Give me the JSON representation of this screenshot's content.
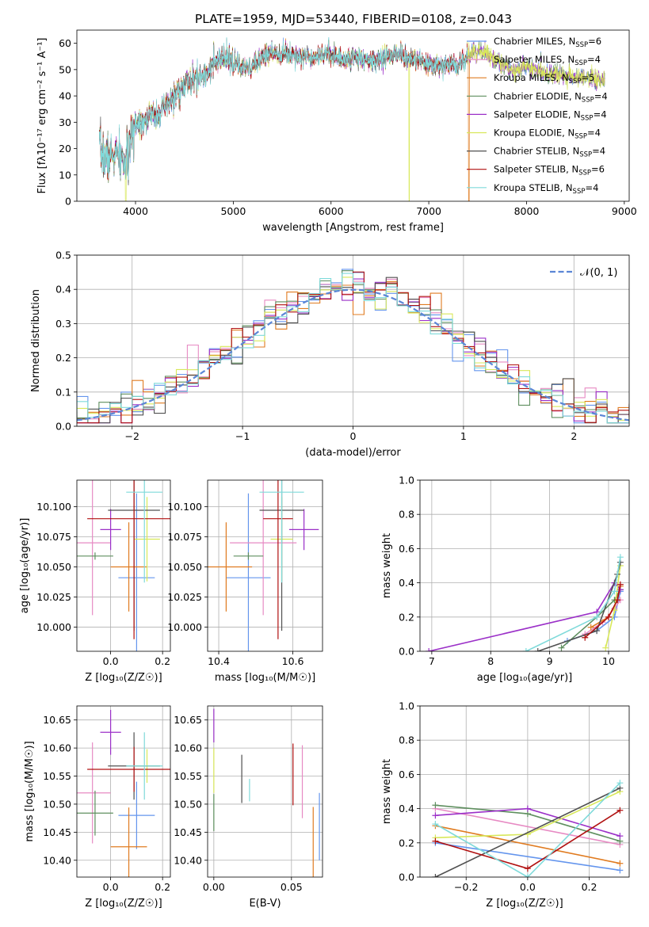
{
  "figure_title": "PLATE=1959, MJD=53440, FIBERID=0108, z=0.043",
  "colors": {
    "Chabrier MILES": "#6495ed",
    "Salpeter MILES": "#e78ac3",
    "Kroupa MILES": "#e07b20",
    "Chabrier ELODIE": "#5f8f5f",
    "Salpeter ELODIE": "#9b30c8",
    "Kroupa ELODIE": "#d8e85a",
    "Chabrier STELIB": "#505050",
    "Salpeter STELIB": "#b01010",
    "Kroupa STELIB": "#7fdada"
  },
  "chart_data": [
    {
      "id": "spectrum",
      "type": "line",
      "xlabel": "wavelength [Angstrom, rest frame]",
      "ylabel": "Flux [fλ10⁻¹⁷ erg cm⁻² s⁻¹ A⁻¹]",
      "xlim": [
        3400,
        9050
      ],
      "ylim": [
        0,
        65
      ],
      "xticks": [
        4000,
        5000,
        6000,
        7000,
        8000,
        9000
      ],
      "yticks": [
        0,
        10,
        20,
        30,
        40,
        50,
        60
      ],
      "grid": false,
      "legend_position": "upper-right",
      "legend": [
        {
          "label": "Chabrier MILES, N",
          "sub": "SSP",
          "suffix": "=6",
          "model": "Chabrier MILES"
        },
        {
          "label": "Salpeter MILES, N",
          "sub": "SSP",
          "suffix": "=4",
          "model": "Salpeter MILES"
        },
        {
          "label": "Kroupa MILES, N",
          "sub": "SSP",
          "suffix": "=5",
          "model": "Kroupa MILES"
        },
        {
          "label": "Chabrier ELODIE, N",
          "sub": "SSP",
          "suffix": "=4",
          "model": "Chabrier ELODIE"
        },
        {
          "label": "Salpeter ELODIE, N",
          "sub": "SSP",
          "suffix": "=4",
          "model": "Salpeter ELODIE"
        },
        {
          "label": "Kroupa ELODIE, N",
          "sub": "SSP",
          "suffix": "=4",
          "model": "Kroupa ELODIE"
        },
        {
          "label": "Chabrier STELIB, N",
          "sub": "SSP",
          "suffix": "=4",
          "model": "Chabrier STELIB"
        },
        {
          "label": "Salpeter STELIB, N",
          "sub": "SSP",
          "suffix": "=6",
          "model": "Salpeter STELIB"
        },
        {
          "label": "Kroupa STELIB, N",
          "sub": "SSP",
          "suffix": "=4",
          "model": "Kroupa STELIB"
        }
      ],
      "continuum": {
        "x": [
          3630,
          3700,
          3800,
          3900,
          3950,
          4000,
          4100,
          4200,
          4300,
          4400,
          4500,
          4600,
          4700,
          4800,
          4900,
          5000,
          5100,
          5200,
          5300,
          5400,
          5500,
          5600,
          5700,
          5800,
          5900,
          6000,
          6100,
          6200,
          6300,
          6400,
          6500,
          6600,
          6700,
          6800,
          6900,
          7000,
          7100,
          7200,
          7300,
          7400,
          7500,
          7600,
          7700,
          7800,
          7900,
          8000,
          8100,
          8200,
          8300,
          8400,
          8500,
          8600,
          8700,
          8800
        ],
        "y": [
          20,
          16,
          18,
          14,
          22,
          30,
          31,
          33,
          35,
          40,
          44,
          46,
          48,
          52,
          54,
          53,
          50,
          51,
          55,
          57,
          56,
          56,
          55,
          55,
          56,
          56,
          54,
          54,
          55,
          53,
          54,
          55,
          56,
          54,
          53,
          52,
          51,
          52,
          52,
          55,
          57,
          56,
          53,
          51,
          50,
          51,
          50,
          49,
          48,
          48,
          47,
          47,
          46,
          46
        ]
      },
      "sharp_dips": [
        {
          "x": 3900,
          "model": "Kroupa ELODIE"
        },
        {
          "x": 6800,
          "model": "Kroupa ELODIE"
        },
        {
          "x": 7410,
          "model": "Kroupa MILES"
        }
      ]
    },
    {
      "id": "residuals",
      "type": "histogram",
      "xlabel": "(data-model)/error",
      "ylabel": "Normed distribution",
      "xlim": [
        -2.5,
        2.5
      ],
      "ylim": [
        0,
        0.5
      ],
      "xticks": [
        -2,
        -1,
        0,
        1,
        2
      ],
      "yticks": [
        0.0,
        0.1,
        0.2,
        0.3,
        0.4,
        0.5
      ],
      "grid": true,
      "legend_position": "upper-right",
      "reference_curve": {
        "label": "𝒩(0, 1)",
        "mean": 0,
        "sigma": 1,
        "color": "#5b86d6",
        "style": "dashed"
      },
      "bin_width": 0.1
    },
    {
      "id": "age_vs_Z",
      "type": "errorbar",
      "xlabel": "Z [log₁₀(Z/Z☉)]",
      "ylabel": "age  [log₁₀(age/yr)]",
      "xlim": [
        -0.13,
        0.23
      ],
      "ylim": [
        9.98,
        10.122
      ],
      "xticks": [
        0.0,
        0.2
      ],
      "yticks": [
        10.0,
        10.025,
        10.05,
        10.075,
        10.1
      ],
      "grid": true,
      "points": [
        {
          "model": "Chabrier MILES",
          "x": 0.1,
          "xerr": 0.07,
          "y": 10.041,
          "yerr": 0.07
        },
        {
          "model": "Salpeter MILES",
          "x": -0.07,
          "xerr": 0.07,
          "y": 10.07,
          "yerr": 0.06
        },
        {
          "model": "Kroupa MILES",
          "x": 0.07,
          "xerr": 0.07,
          "y": 10.05,
          "yerr": 0.037
        },
        {
          "model": "Chabrier ELODIE",
          "x": -0.06,
          "xerr": 0.07,
          "y": 10.059,
          "yerr": 0.003
        },
        {
          "model": "Salpeter ELODIE",
          "x": 0.0,
          "xerr": 0.04,
          "y": 10.081,
          "yerr": 0.017
        },
        {
          "model": "Kroupa ELODIE",
          "x": 0.14,
          "xerr": 0.05,
          "y": 10.073,
          "yerr": 0.035
        },
        {
          "model": "Chabrier STELIB",
          "x": 0.09,
          "xerr": 0.1,
          "y": 10.097,
          "yerr": 0.1
        },
        {
          "model": "Salpeter STELIB",
          "x": 0.09,
          "xerr": 0.18,
          "y": 10.09,
          "yerr": 0.1
        },
        {
          "model": "Kroupa STELIB",
          "x": 0.13,
          "xerr": 0.07,
          "y": 10.112,
          "yerr": 0.075
        }
      ]
    },
    {
      "id": "age_vs_mass",
      "type": "errorbar",
      "xlabel": "mass [log₁₀(M/M☉)]",
      "ylabel": "",
      "xlim": [
        10.37,
        10.68
      ],
      "ylim": [
        9.98,
        10.122
      ],
      "xticks": [
        10.4,
        10.6
      ],
      "yticks": [
        10.0,
        10.025,
        10.05,
        10.075,
        10.1
      ],
      "grid": true,
      "points": [
        {
          "model": "Chabrier MILES",
          "x": 10.48,
          "xerr": 0.06,
          "y": 10.041,
          "yerr": 0.07
        },
        {
          "model": "Salpeter MILES",
          "x": 10.52,
          "xerr": 0.09,
          "y": 10.07,
          "yerr": 0.06
        },
        {
          "model": "Kroupa MILES",
          "x": 10.42,
          "xerr": 0.07,
          "y": 10.05,
          "yerr": 0.037
        },
        {
          "model": "Chabrier ELODIE",
          "x": 10.48,
          "xerr": 0.04,
          "y": 10.059,
          "yerr": 0.003
        },
        {
          "model": "Salpeter ELODIE",
          "x": 10.63,
          "xerr": 0.04,
          "y": 10.081,
          "yerr": 0.017
        },
        {
          "model": "Kroupa ELODIE",
          "x": 10.57,
          "xerr": 0.03,
          "y": 10.073,
          "yerr": 0.035
        },
        {
          "model": "Chabrier STELIB",
          "x": 10.57,
          "xerr": 0.06,
          "y": 10.097,
          "yerr": 0.1
        },
        {
          "model": "Salpeter STELIB",
          "x": 10.56,
          "xerr": 0.04,
          "y": 10.09,
          "yerr": 0.1
        },
        {
          "model": "Kroupa STELIB",
          "x": 10.57,
          "xerr": 0.06,
          "y": 10.112,
          "yerr": 0.075
        }
      ]
    },
    {
      "id": "weight_vs_age",
      "type": "line",
      "xlabel": "age  [log₁₀(age/yr)]",
      "ylabel": "mass weight",
      "xlim": [
        6.8,
        10.35
      ],
      "ylim": [
        0,
        1
      ],
      "xticks": [
        7,
        8,
        9,
        10
      ],
      "yticks": [
        0.0,
        0.2,
        0.4,
        0.6,
        0.8,
        1.0
      ],
      "grid": true,
      "series": [
        {
          "model": "Chabrier MILES",
          "x": [
            9.3,
            9.8,
            10.1,
            10.2
          ],
          "y": [
            0.06,
            0.12,
            0.2,
            0.35
          ]
        },
        {
          "model": "Salpeter MILES",
          "x": [
            9.6,
            9.9,
            10.1,
            10.2
          ],
          "y": [
            0.1,
            0.17,
            0.25,
            0.3
          ]
        },
        {
          "model": "Kroupa MILES",
          "x": [
            9.7,
            10.0,
            10.15,
            10.2
          ],
          "y": [
            0.14,
            0.2,
            0.3,
            0.38
          ]
        },
        {
          "model": "Chabrier ELODIE",
          "x": [
            9.2,
            9.8,
            10.1,
            10.2
          ],
          "y": [
            0.02,
            0.2,
            0.3,
            0.36
          ]
        },
        {
          "model": "Salpeter ELODIE",
          "x": [
            6.95,
            9.8,
            10.1,
            10.2
          ],
          "y": [
            0.0,
            0.23,
            0.4,
            0.36
          ]
        },
        {
          "model": "Kroupa ELODIE",
          "x": [
            9.95,
            10.1,
            10.2
          ],
          "y": [
            0.02,
            0.24,
            0.5
          ]
        },
        {
          "model": "Chabrier STELIB",
          "x": [
            8.8,
            9.8,
            10.15,
            10.2
          ],
          "y": [
            0.0,
            0.12,
            0.45,
            0.52
          ]
        },
        {
          "model": "Salpeter STELIB",
          "x": [
            9.6,
            10.0,
            10.15,
            10.2
          ],
          "y": [
            0.08,
            0.2,
            0.3,
            0.39
          ]
        },
        {
          "model": "Kroupa STELIB",
          "x": [
            8.6,
            9.8,
            10.1,
            10.2
          ],
          "y": [
            0.0,
            0.2,
            0.35,
            0.55
          ]
        }
      ]
    },
    {
      "id": "mass_vs_Z",
      "type": "errorbar",
      "xlabel": "Z [log₁₀(Z/Z☉)]",
      "ylabel": "mass [log₁₀(M/M☉)]",
      "xlim": [
        -0.13,
        0.23
      ],
      "ylim": [
        10.37,
        10.675
      ],
      "xticks": [
        0.0,
        0.2
      ],
      "yticks": [
        10.4,
        10.45,
        10.5,
        10.55,
        10.6,
        10.65
      ],
      "grid": true,
      "points": [
        {
          "model": "Chabrier MILES",
          "x": 0.1,
          "xerr": 0.07,
          "y": 10.48,
          "yerr": 0.06
        },
        {
          "model": "Salpeter MILES",
          "x": -0.07,
          "xerr": 0.07,
          "y": 10.52,
          "yerr": 0.09
        },
        {
          "model": "Kroupa MILES",
          "x": 0.07,
          "xerr": 0.07,
          "y": 10.424,
          "yerr": 0.07
        },
        {
          "model": "Chabrier ELODIE",
          "x": -0.06,
          "xerr": 0.07,
          "y": 10.484,
          "yerr": 0.04
        },
        {
          "model": "Salpeter ELODIE",
          "x": 0.0,
          "xerr": 0.04,
          "y": 10.628,
          "yerr": 0.04
        },
        {
          "model": "Kroupa ELODIE",
          "x": 0.14,
          "xerr": 0.05,
          "y": 10.568,
          "yerr": 0.03
        },
        {
          "model": "Chabrier STELIB",
          "x": 0.09,
          "xerr": 0.1,
          "y": 10.568,
          "yerr": 0.06
        },
        {
          "model": "Salpeter STELIB",
          "x": 0.09,
          "xerr": 0.18,
          "y": 10.562,
          "yerr": 0.04
        },
        {
          "model": "Kroupa STELIB",
          "x": 0.13,
          "xerr": 0.07,
          "y": 10.568,
          "yerr": 0.06
        }
      ]
    },
    {
      "id": "mass_vs_ebv",
      "type": "errorbar",
      "xlabel": "E(B-V)",
      "ylabel": "",
      "xlim": [
        -0.004,
        0.07
      ],
      "ylim": [
        10.37,
        10.675
      ],
      "xticks": [
        0.0,
        0.05
      ],
      "yticks": [
        10.4,
        10.45,
        10.5,
        10.55,
        10.6,
        10.65
      ],
      "grid": true,
      "points": [
        {
          "model": "Chabrier MILES",
          "x": 0.068,
          "xerr": 0.0,
          "y": 10.46,
          "yerr": 0.06
        },
        {
          "model": "Salpeter MILES",
          "x": 0.057,
          "xerr": 0.0,
          "y": 10.54,
          "yerr": 0.065
        },
        {
          "model": "Kroupa MILES",
          "x": 0.064,
          "xerr": 0.0,
          "y": 10.42,
          "yerr": 0.075
        },
        {
          "model": "Chabrier ELODIE",
          "x": 0.0,
          "xerr": 0.0,
          "y": 10.485,
          "yerr": 0.033
        },
        {
          "model": "Salpeter ELODIE",
          "x": 0.0,
          "xerr": 0.0,
          "y": 10.64,
          "yerr": 0.03
        },
        {
          "model": "Kroupa ELODIE",
          "x": 0.0,
          "xerr": 0.0,
          "y": 10.56,
          "yerr": 0.04
        },
        {
          "model": "Chabrier STELIB",
          "x": 0.018,
          "xerr": 0.0,
          "y": 10.545,
          "yerr": 0.043
        },
        {
          "model": "Salpeter STELIB",
          "x": 0.051,
          "xerr": 0.0,
          "y": 10.553,
          "yerr": 0.055
        },
        {
          "model": "Kroupa STELIB",
          "x": 0.023,
          "xerr": 0.0,
          "y": 10.525,
          "yerr": 0.02
        }
      ]
    },
    {
      "id": "weight_vs_Z",
      "type": "line",
      "xlabel": "Z [log₁₀(Z/Z☉)]",
      "ylabel": "mass weight",
      "xlim": [
        -0.35,
        0.33
      ],
      "ylim": [
        0,
        1
      ],
      "xticks": [
        -0.2,
        0.0,
        0.2
      ],
      "yticks": [
        0.0,
        0.2,
        0.4,
        0.6,
        0.8,
        1.0
      ],
      "grid": true,
      "series": [
        {
          "model": "Chabrier MILES",
          "x": [
            -0.3,
            0.3
          ],
          "y": [
            0.2,
            0.04
          ]
        },
        {
          "model": "Salpeter MILES",
          "x": [
            -0.3,
            0.3
          ],
          "y": [
            0.4,
            0.19
          ]
        },
        {
          "model": "Kroupa MILES",
          "x": [
            -0.3,
            0.3
          ],
          "y": [
            0.3,
            0.08
          ]
        },
        {
          "model": "Chabrier ELODIE",
          "x": [
            -0.3,
            0.0,
            0.3
          ],
          "y": [
            0.42,
            0.37,
            0.21
          ]
        },
        {
          "model": "Salpeter ELODIE",
          "x": [
            -0.3,
            0.0,
            0.3
          ],
          "y": [
            0.36,
            0.4,
            0.24
          ]
        },
        {
          "model": "Kroupa ELODIE",
          "x": [
            -0.3,
            0.0,
            0.3
          ],
          "y": [
            0.23,
            0.25,
            0.5
          ]
        },
        {
          "model": "Chabrier STELIB",
          "x": [
            -0.3,
            0.3
          ],
          "y": [
            0.0,
            0.52
          ]
        },
        {
          "model": "Salpeter STELIB",
          "x": [
            -0.3,
            0.0,
            0.3
          ],
          "y": [
            0.21,
            0.05,
            0.39
          ]
        },
        {
          "model": "Kroupa STELIB",
          "x": [
            -0.3,
            0.0,
            0.3
          ],
          "y": [
            0.31,
            0.0,
            0.55
          ]
        }
      ]
    }
  ]
}
